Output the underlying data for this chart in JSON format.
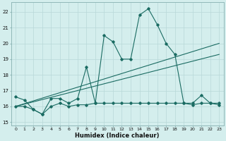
{
  "xlabel": "Humidex (Indice chaleur)",
  "ylabel": "",
  "background_color": "#d4eeed",
  "grid_color": "#b8d8d8",
  "line_color": "#1a6b62",
  "xlim": [
    -0.5,
    23.5
  ],
  "ylim": [
    14.8,
    22.6
  ],
  "yticks": [
    15,
    16,
    17,
    18,
    19,
    20,
    21,
    22
  ],
  "xticks": [
    0,
    1,
    2,
    3,
    4,
    5,
    6,
    7,
    8,
    9,
    10,
    11,
    12,
    13,
    14,
    15,
    16,
    17,
    18,
    19,
    20,
    21,
    22,
    23
  ],
  "series_bottom_x": [
    0,
    1,
    2,
    3,
    4,
    5,
    6,
    7,
    8,
    9,
    10,
    11,
    12,
    13,
    14,
    15,
    16,
    17,
    18,
    19,
    20,
    21,
    22,
    23
  ],
  "series_bottom_y": [
    16.0,
    16.0,
    15.8,
    15.5,
    16.0,
    16.2,
    16.0,
    16.1,
    16.1,
    16.2,
    16.2,
    16.2,
    16.2,
    16.2,
    16.2,
    16.2,
    16.2,
    16.2,
    16.2,
    16.2,
    16.1,
    16.2,
    16.2,
    16.1
  ],
  "series_main_x": [
    0,
    1,
    2,
    3,
    4,
    5,
    6,
    7,
    8,
    9,
    10,
    11,
    12,
    13,
    14,
    15,
    16,
    17,
    18,
    19,
    20,
    21,
    22,
    23
  ],
  "series_main_y": [
    16.6,
    16.4,
    15.8,
    15.5,
    16.5,
    16.5,
    16.2,
    16.5,
    18.5,
    16.2,
    20.5,
    20.1,
    19.0,
    19.0,
    21.8,
    22.2,
    21.2,
    20.0,
    19.3,
    16.2,
    16.2,
    16.7,
    16.2,
    16.2
  ],
  "trend1_x": [
    0,
    23
  ],
  "trend1_y": [
    16.0,
    20.0
  ],
  "trend2_x": [
    0,
    23
  ],
  "trend2_y": [
    16.0,
    19.3
  ]
}
